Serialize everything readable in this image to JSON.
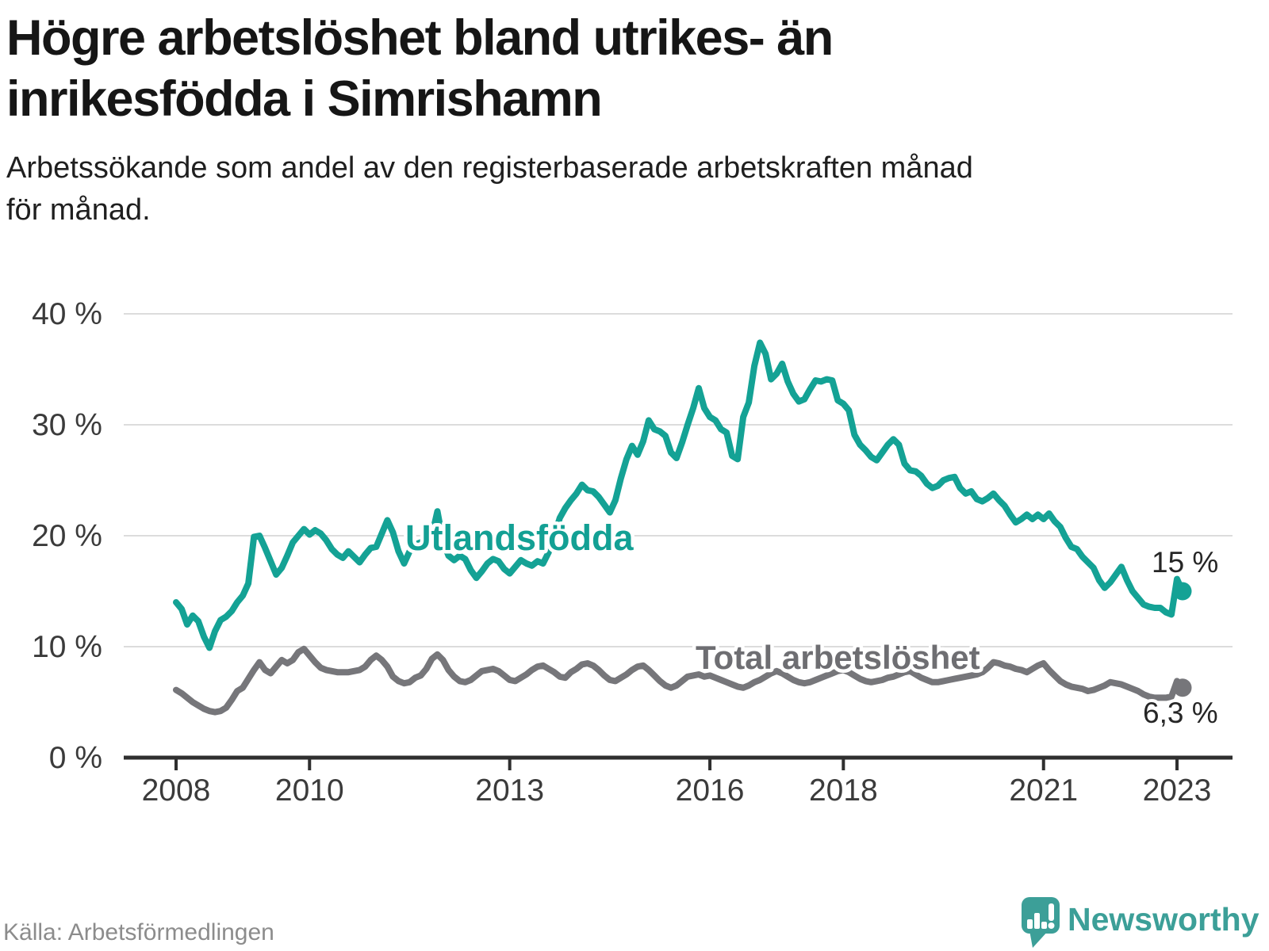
{
  "header": {
    "title_line1": "Högre arbetslöshet bland utrikes- än",
    "title_line2": "inrikesfödda i Simrishamn",
    "subtitle_line1": "Arbetssökande som andel av den registerbaserade arbetskraften månad",
    "subtitle_line2": "för månad."
  },
  "footer": {
    "source": "Källa: Arbetsförmedlingen",
    "logo_text": "Newsworthy",
    "logo_color": "#3c9f98"
  },
  "chart_data": {
    "type": "line",
    "title": "Högre arbetslöshet bland utrikes- än inrikesfödda i Simrishamn",
    "subtitle": "Arbetssökande som andel av den registerbaserade arbetskraften månad för månad.",
    "x_start": "2008-01",
    "x_end": "2023-02",
    "x_unit": "month",
    "x_tick_years": [
      2008,
      2010,
      2013,
      2016,
      2018,
      2021,
      2023
    ],
    "ylim": [
      0,
      40
    ],
    "y_tick_values": [
      0,
      10,
      20,
      30,
      40
    ],
    "y_tick_labels": [
      "0 %",
      "10 %",
      "20 %",
      "30 %",
      "40 %"
    ],
    "grid": "horizontal",
    "legend_position": "inline-labels",
    "colors": {
      "grid": "#dcdcdc",
      "axis": "#2f2f2f",
      "tick_text": "#3b3b3b",
      "value_label_text": "#262626"
    },
    "series": [
      {
        "name": "Utlandsfödda",
        "color": "#14a295",
        "label_color": "#13a094",
        "end_label": "15 %",
        "end_value": 15.0,
        "values": [
          14.0,
          13.4,
          12.0,
          12.8,
          12.3,
          10.9,
          9.9,
          11.4,
          12.4,
          12.7,
          13.2,
          14.0,
          14.6,
          15.7,
          19.9,
          20.0,
          18.9,
          17.7,
          16.5,
          17.1,
          18.2,
          19.4,
          20.0,
          20.6,
          20.1,
          20.5,
          20.2,
          19.6,
          18.8,
          18.3,
          18.0,
          18.6,
          18.1,
          17.6,
          18.3,
          18.9,
          19.0,
          20.2,
          21.4,
          20.3,
          18.6,
          17.5,
          18.6,
          19.2,
          19.4,
          19.6,
          20.0,
          22.2,
          19.5,
          18.2,
          17.8,
          18.2,
          17.9,
          16.9,
          16.2,
          16.8,
          17.5,
          17.9,
          17.7,
          17.0,
          16.6,
          17.2,
          17.8,
          17.5,
          17.3,
          17.7,
          17.5,
          18.5,
          20.0,
          21.6,
          22.5,
          23.2,
          23.8,
          24.6,
          24.1,
          24.0,
          23.5,
          22.8,
          22.1,
          23.2,
          25.2,
          26.9,
          28.1,
          27.3,
          28.5,
          30.4,
          29.6,
          29.4,
          29.0,
          27.5,
          27.0,
          28.4,
          30.0,
          31.5,
          33.3,
          31.5,
          30.7,
          30.4,
          29.6,
          29.3,
          27.2,
          26.9,
          30.7,
          32.0,
          35.3,
          37.4,
          36.4,
          34.1,
          34.6,
          35.5,
          33.9,
          32.8,
          32.1,
          32.3,
          33.2,
          34.0,
          33.9,
          34.1,
          34.0,
          32.2,
          31.9,
          31.3,
          29.1,
          28.2,
          27.7,
          27.1,
          26.8,
          27.5,
          28.2,
          28.7,
          28.2,
          26.5,
          25.9,
          25.8,
          25.4,
          24.7,
          24.3,
          24.5,
          25.0,
          25.2,
          25.3,
          24.3,
          23.8,
          24.0,
          23.3,
          23.1,
          23.4,
          23.8,
          23.2,
          22.7,
          21.9,
          21.2,
          21.5,
          21.9,
          21.5,
          21.9,
          21.5,
          22.0,
          21.3,
          20.8,
          19.8,
          19.0,
          18.8,
          18.1,
          17.6,
          17.1,
          16.0,
          15.3,
          15.8,
          16.5,
          17.2,
          16.0,
          15.0,
          14.4,
          13.8,
          13.6,
          13.5,
          13.5,
          13.1,
          12.9,
          16.1,
          15.0
        ]
      },
      {
        "name": "Total arbetslöshet",
        "color": "#76767a",
        "label_color": "#6e6e72",
        "end_label": "6,3 %",
        "end_value": 6.3,
        "values": [
          6.1,
          5.8,
          5.4,
          5.0,
          4.7,
          4.4,
          4.2,
          4.1,
          4.2,
          4.5,
          5.2,
          6.0,
          6.3,
          7.1,
          7.9,
          8.6,
          7.9,
          7.6,
          8.2,
          8.8,
          8.5,
          8.8,
          9.5,
          9.8,
          9.2,
          8.6,
          8.1,
          7.9,
          7.8,
          7.7,
          7.7,
          7.7,
          7.8,
          7.9,
          8.2,
          8.8,
          9.2,
          8.8,
          8.2,
          7.3,
          6.9,
          6.7,
          6.8,
          7.2,
          7.4,
          8.0,
          8.9,
          9.3,
          8.8,
          7.9,
          7.3,
          6.9,
          6.8,
          7.0,
          7.4,
          7.8,
          7.9,
          8.0,
          7.8,
          7.4,
          7.0,
          6.9,
          7.2,
          7.5,
          7.9,
          8.2,
          8.3,
          8.0,
          7.7,
          7.3,
          7.2,
          7.7,
          8.0,
          8.4,
          8.5,
          8.3,
          7.9,
          7.4,
          7.0,
          6.9,
          7.2,
          7.5,
          7.9,
          8.2,
          8.3,
          7.9,
          7.4,
          6.9,
          6.5,
          6.3,
          6.5,
          6.9,
          7.3,
          7.4,
          7.5,
          7.3,
          7.4,
          7.2,
          7.0,
          6.8,
          6.6,
          6.4,
          6.3,
          6.5,
          6.8,
          7.0,
          7.3,
          7.6,
          7.8,
          7.6,
          7.3,
          7.0,
          6.8,
          6.7,
          6.8,
          7.0,
          7.2,
          7.4,
          7.6,
          7.8,
          7.9,
          7.7,
          7.4,
          7.1,
          6.9,
          6.8,
          6.9,
          7.0,
          7.2,
          7.3,
          7.5,
          7.7,
          7.8,
          7.5,
          7.2,
          7.0,
          6.8,
          6.8,
          6.9,
          7.0,
          7.1,
          7.2,
          7.3,
          7.4,
          7.5,
          7.7,
          8.1,
          8.6,
          8.5,
          8.3,
          8.2,
          8.0,
          7.9,
          7.7,
          8.0,
          8.3,
          8.5,
          7.9,
          7.4,
          6.9,
          6.6,
          6.4,
          6.3,
          6.2,
          6.0,
          6.1,
          6.3,
          6.5,
          6.8,
          6.7,
          6.6,
          6.4,
          6.2,
          6.0,
          5.7,
          5.5,
          5.4,
          5.4,
          5.4,
          5.5,
          6.9,
          6.3
        ]
      }
    ]
  }
}
